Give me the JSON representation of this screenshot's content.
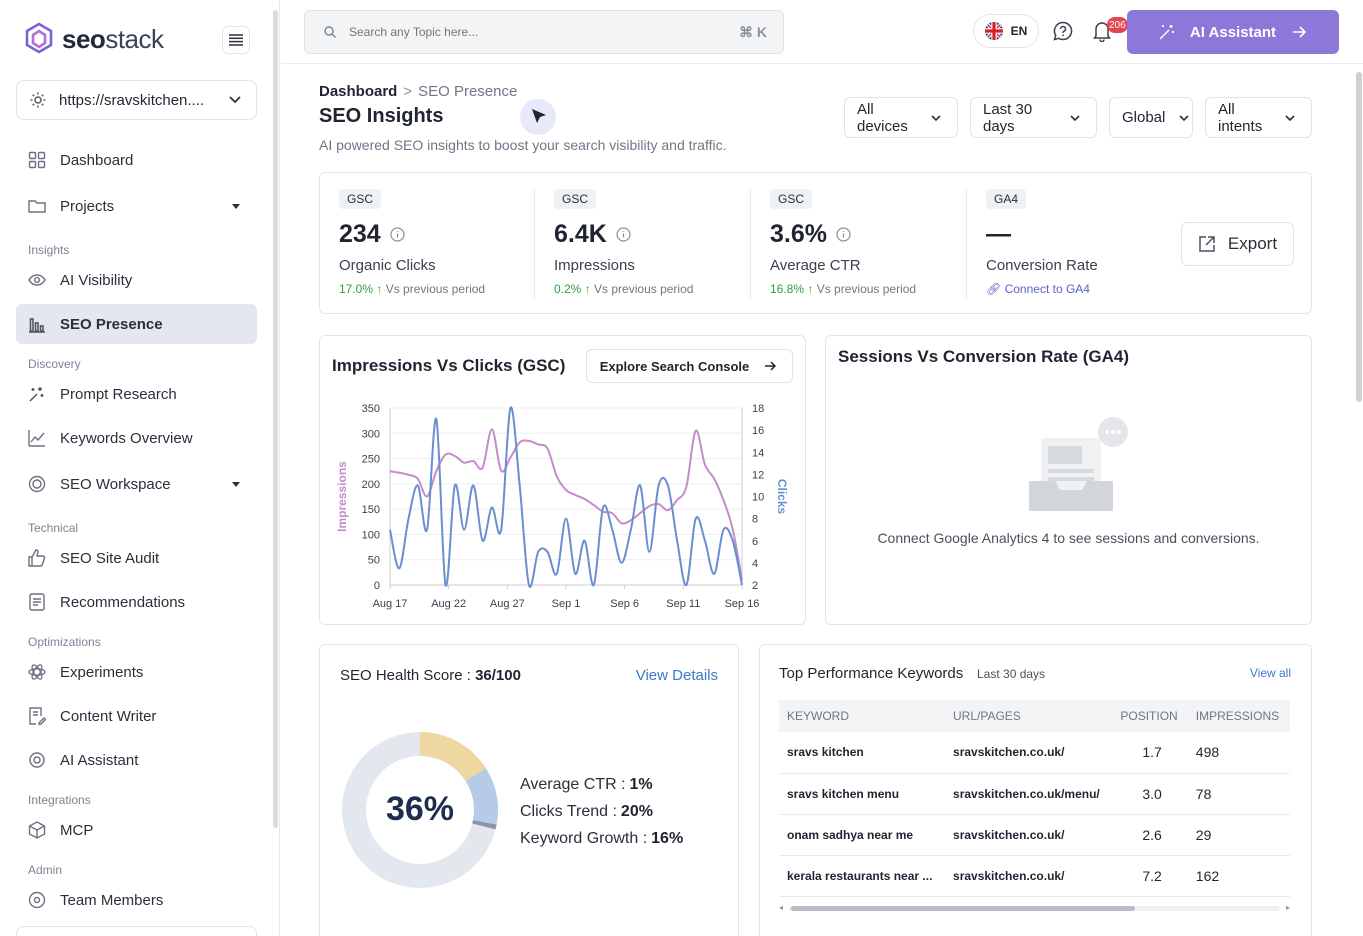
{
  "brand": {
    "name_a": "seo",
    "name_b": "stack"
  },
  "site_selector": {
    "value": "https://sravskitchen...."
  },
  "nav": {
    "dashboard": "Dashboard",
    "projects": "Projects",
    "sec_insights": "Insights",
    "ai_visibility": "AI Visibility",
    "seo_presence": "SEO Presence",
    "sec_discovery": "Discovery",
    "prompt_research": "Prompt Research",
    "keywords_overview": "Keywords Overview",
    "seo_workspace": "SEO Workspace",
    "sec_technical": "Technical",
    "site_audit": "SEO Site Audit",
    "recommendations": "Recommendations",
    "sec_optimizations": "Optimizations",
    "experiments": "Experiments",
    "content_writer": "Content Writer",
    "ai_assistant": "AI Assistant",
    "sec_integrations": "Integrations",
    "mcp": "MCP",
    "sec_admin": "Admin",
    "team_members": "Team Members"
  },
  "topbar": {
    "search_placeholder": "Search any Topic here...",
    "shortcut": "⌘ K",
    "language": "EN",
    "notif_count": "206",
    "ai_button": "AI Assistant"
  },
  "header": {
    "crumb_root": "Dashboard",
    "crumb_sep": ">",
    "crumb_current": "SEO Presence",
    "title": "SEO Insights",
    "subtitle": "AI powered SEO insights to boost your search visibility and traffic."
  },
  "filters": {
    "device": "All devices",
    "period": "Last 30 days",
    "region": "Global",
    "intent": "All intents"
  },
  "kpis": [
    {
      "tag": "GSC",
      "value": "234",
      "label": "Organic Clicks",
      "change": "17.0%",
      "suffix": "Vs previous period"
    },
    {
      "tag": "GSC",
      "value": "6.4K",
      "label": "Impressions",
      "change": "0.2%",
      "suffix": "Vs previous period"
    },
    {
      "tag": "GSC",
      "value": "3.6%",
      "label": "Average CTR",
      "change": "16.8%",
      "suffix": "Vs previous period"
    },
    {
      "tag": "GA4",
      "value": "—",
      "label": "Conversion Rate",
      "link": "Connect to GA4"
    }
  ],
  "export_label": "Export",
  "chart_card": {
    "title": "Impressions Vs Clicks (GSC)",
    "button": "Explore Search Console"
  },
  "ga_card": {
    "title": "Sessions Vs Conversion Rate (GA4)",
    "message": "Connect Google Analytics 4 to see sessions and conversions."
  },
  "chart_data": {
    "type": "line",
    "xlabel": "",
    "ylabel": "Impressions",
    "y2label": "Clicks",
    "x_ticks": [
      "Aug 17",
      "Aug 22",
      "Aug 27",
      "Sep 1",
      "Sep 6",
      "Sep 11",
      "Sep 16"
    ],
    "y_ticks": [
      0,
      50,
      100,
      150,
      200,
      250,
      300,
      350
    ],
    "y2_ticks": [
      2,
      4,
      6,
      8,
      10,
      12,
      14,
      16,
      18
    ],
    "ylim": [
      0,
      350
    ],
    "y2lim": [
      2,
      18
    ],
    "colors": {
      "impressions": "#c58bcc",
      "clicks": "#6a8fd0"
    },
    "series": [
      {
        "name": "Impressions",
        "axis": "left",
        "values": [
          225,
          222,
          218,
          210,
          175,
          225,
          258,
          255,
          242,
          245,
          232,
          308,
          226,
          252,
          282,
          285,
          278,
          270,
          215,
          188,
          178,
          170,
          158,
          145,
          142,
          122,
          128,
          142,
          156,
          160,
          148,
          168,
          195,
          305,
          238,
          210,
          168,
          110,
          10
        ]
      },
      {
        "name": "Clicks",
        "axis": "right",
        "values": [
          7,
          3.5,
          8,
          11,
          7,
          17,
          2,
          11,
          7,
          11,
          6,
          9,
          7,
          18,
          11,
          2,
          5,
          5,
          3,
          8,
          3,
          6,
          2,
          9,
          7,
          4,
          7,
          11,
          5,
          11,
          11,
          6,
          2,
          8,
          6,
          3,
          7,
          6,
          2
        ]
      }
    ]
  },
  "health": {
    "title": "SEO Health Score :",
    "score": "36/100",
    "link": "View Details",
    "percent": "36%",
    "score_value": 36,
    "segments": [
      {
        "value": 16,
        "color": "#eed7a0"
      },
      {
        "value": 12,
        "color": "#b5cbe6"
      },
      {
        "value": 1,
        "color": "#8d93a8"
      }
    ],
    "remaining_color": "#e3e7ee",
    "metrics": [
      {
        "label": "Average CTR :",
        "value": "1%"
      },
      {
        "label": "Clicks Trend :",
        "value": "20%"
      },
      {
        "label": "Keyword Growth :",
        "value": "16%"
      }
    ]
  },
  "keywords": {
    "title": "Top Performance Keywords",
    "subtitle": "Last 30 days",
    "link": "View all",
    "headers": [
      "KEYWORD",
      "URL/PAGES",
      "POSITION",
      "IMPRESSIONS"
    ],
    "rows": [
      [
        "sravs kitchen",
        "sravskitchen.co.uk/",
        "1.7",
        "498"
      ],
      [
        "sravs kitchen menu",
        "sravskitchen.co.uk/menu/",
        "3.0",
        "78"
      ],
      [
        "onam sadhya near me",
        "sravskitchen.co.uk/",
        "2.6",
        "29"
      ],
      [
        "kerala restaurants near ...",
        "sravskitchen.co.uk/",
        "7.2",
        "162"
      ]
    ]
  }
}
